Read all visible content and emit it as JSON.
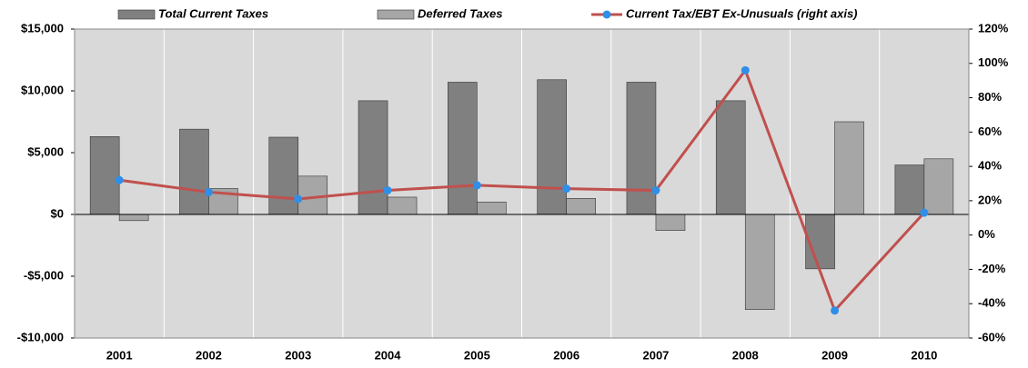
{
  "chart_data": {
    "type": "bar",
    "categories": [
      "2001",
      "2002",
      "2003",
      "2004",
      "2005",
      "2006",
      "2007",
      "2008",
      "2009",
      "2010"
    ],
    "series": [
      {
        "name": "Total Current Taxes",
        "color": "#808080",
        "values": [
          6300,
          6900,
          6250,
          9200,
          10700,
          10900,
          10700,
          9200,
          -4400,
          4000
        ]
      },
      {
        "name": "Deferred Taxes",
        "color": "#a6a6a6",
        "values": [
          -500,
          2100,
          3100,
          1400,
          1000,
          1300,
          -1300,
          -7700,
          7500,
          4500
        ]
      },
      {
        "name": "Current Tax/EBT Ex-Unusuals (right axis)",
        "type": "line",
        "axis": "y2",
        "color": "#c0504d",
        "marker_color": "#2f8fe8",
        "values": [
          32,
          25,
          21,
          26,
          29,
          27,
          26,
          96,
          -44,
          13
        ]
      }
    ],
    "ylim": [
      -10000,
      15000
    ],
    "yticks": [
      {
        "value": -10000,
        "label": "-$10,000"
      },
      {
        "value": -5000,
        "label": "-$5,000"
      },
      {
        "value": 0,
        "label": "$0"
      },
      {
        "value": 5000,
        "label": "$5,000"
      },
      {
        "value": 10000,
        "label": "$10,000"
      },
      {
        "value": 15000,
        "label": "$15,000"
      }
    ],
    "y2lim": [
      -60,
      120
    ],
    "y2ticks": [
      {
        "value": -60,
        "label": "-60%"
      },
      {
        "value": -40,
        "label": "-40%"
      },
      {
        "value": -20,
        "label": "-20%"
      },
      {
        "value": 0,
        "label": "0%"
      },
      {
        "value": 20,
        "label": "20%"
      },
      {
        "value": 40,
        "label": "40%"
      },
      {
        "value": 60,
        "label": "60%"
      },
      {
        "value": 80,
        "label": "80%"
      },
      {
        "value": 100,
        "label": "100%"
      },
      {
        "value": 120,
        "label": "120%"
      }
    ],
    "legend": "top"
  }
}
